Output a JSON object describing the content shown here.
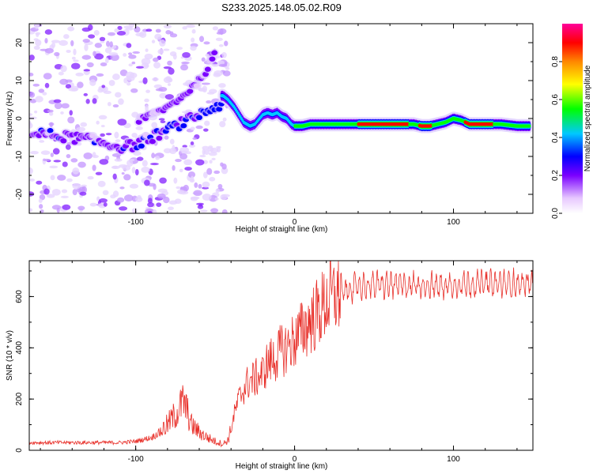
{
  "chart_data": [
    {
      "type": "heatmap",
      "title": "S233.2025.148.05.02.R09",
      "xlabel": "Height of straight line (km)",
      "ylabel": "Frequency (Hz)",
      "xlim": [
        -167,
        150
      ],
      "ylim": [
        -25,
        25
      ],
      "xticks": [
        -100,
        0,
        100
      ],
      "xtick_labels": [
        "-100",
        "0",
        "100"
      ],
      "yticks": [
        -20,
        -10,
        0,
        10,
        20
      ],
      "ytick_labels": [
        "-20",
        "-10",
        "0",
        "10",
        "20"
      ],
      "colorbar": {
        "label": "Normalized spectral amplitude",
        "range": [
          0,
          1
        ],
        "ticks": [
          0.0,
          0.2,
          0.4,
          0.6,
          0.8
        ],
        "tick_labels": [
          "0.0",
          "0.2",
          "0.4",
          "0.6",
          "0.8"
        ],
        "colormap": "rainbow"
      },
      "ridge_lower": {
        "x": [
          -160,
          -150,
          -140,
          -130,
          -120,
          -110,
          -100,
          -90,
          -80,
          -70,
          -60,
          -50,
          -45
        ],
        "y": [
          -4,
          -4.5,
          -5,
          -5.5,
          -6.5,
          -7.5,
          -7,
          -5,
          -3,
          -1,
          1,
          3,
          4
        ]
      },
      "ridge_upper": {
        "x": [
          -100,
          -90,
          -80,
          -70,
          -60,
          -55,
          -50
        ],
        "y": [
          -1,
          1,
          3,
          6,
          10,
          13,
          17
        ]
      },
      "ridge_main": {
        "x": [
          -45,
          -42,
          -38,
          -35,
          -32,
          -28,
          -25,
          -22,
          -20,
          -17,
          -14,
          -11,
          -8,
          -5,
          -2,
          0,
          5,
          10,
          20,
          30,
          40,
          50,
          60,
          70,
          75,
          80,
          85,
          90,
          95,
          100,
          105,
          110,
          120,
          130,
          140,
          148
        ],
        "y": [
          6,
          5,
          3,
          1,
          -1,
          -2,
          -1.5,
          0,
          1,
          1.5,
          1,
          1.5,
          0.5,
          0,
          -1.5,
          -2,
          -2,
          -1.5,
          -1.5,
          -1.5,
          -1.5,
          -1.5,
          -1.5,
          -1.5,
          -1.5,
          -2,
          -2,
          -1.5,
          -1,
          0,
          -0.5,
          -1.5,
          -1.5,
          -1.5,
          -2,
          -2
        ]
      }
    },
    {
      "type": "line",
      "title": "",
      "xlabel": "Height of straight line (km)",
      "ylabel": "SNR (10 * v/v)",
      "xlim": [
        -167,
        150
      ],
      "ylim": [
        0,
        740
      ],
      "xticks": [
        -100,
        0,
        100
      ],
      "xtick_labels": [
        "-100",
        "0",
        "100"
      ],
      "yticks": [
        0,
        200,
        400,
        600
      ],
      "ytick_labels": [
        "0",
        "200",
        "400",
        "600"
      ],
      "series": [
        {
          "color": "#e8302a",
          "x": [
            -167,
            -150,
            -130,
            -110,
            -100,
            -90,
            -85,
            -80,
            -75,
            -72,
            -70,
            -68,
            -65,
            -60,
            -55,
            -50,
            -45,
            -42,
            -40,
            -38,
            -35,
            -32,
            -30,
            -28,
            -25,
            -22,
            -20,
            -18,
            -15,
            -12,
            -10,
            -8,
            -5,
            -2,
            0,
            3,
            5,
            8,
            10,
            13,
            15,
            18,
            20,
            25,
            30,
            35,
            40,
            50,
            60,
            70,
            80,
            90,
            100,
            110,
            120,
            130,
            140,
            150
          ],
          "y": [
            30,
            30,
            30,
            30,
            35,
            50,
            70,
            100,
            140,
            170,
            190,
            160,
            100,
            70,
            50,
            35,
            25,
            40,
            80,
            140,
            200,
            240,
            260,
            270,
            280,
            290,
            300,
            330,
            350,
            360,
            380,
            390,
            400,
            420,
            430,
            450,
            470,
            490,
            510,
            520,
            540,
            560,
            580,
            600,
            620,
            630,
            640,
            645,
            645,
            645,
            645,
            640,
            645,
            650,
            650,
            650,
            650,
            650
          ]
        }
      ]
    }
  ]
}
